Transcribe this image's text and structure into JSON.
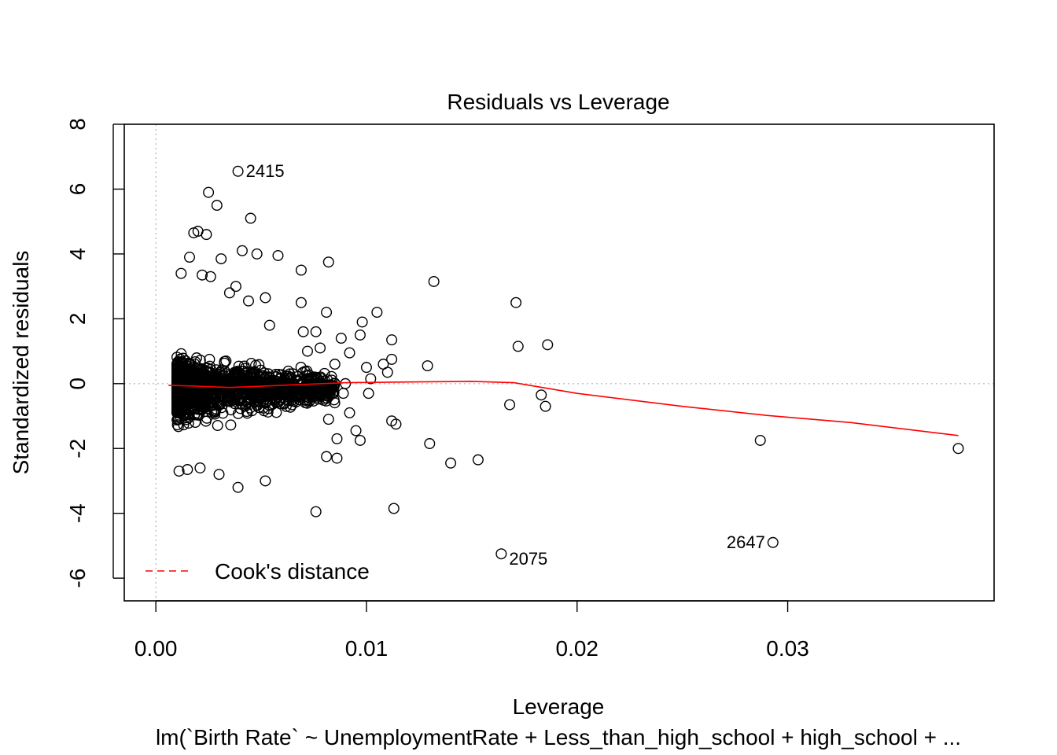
{
  "chart_data": {
    "type": "scatter",
    "title": "Residuals vs Leverage",
    "xlabel": "Leverage",
    "ylabel": "Standardized residuals",
    "subtitle": "lm(`Birth Rate` ~ UnemploymentRate + Less_than_high_school + high_school +  ...",
    "xlim": [
      -0.0015,
      0.0398
    ],
    "ylim": [
      -6.7,
      8.0
    ],
    "x_ticks": [
      0.0,
      0.01,
      0.02,
      0.03
    ],
    "x_tick_labels": [
      "0.00",
      "0.01",
      "0.02",
      "0.03"
    ],
    "y_ticks": [
      -6,
      -4,
      -2,
      0,
      2,
      4,
      6,
      8
    ],
    "y_tick_labels": [
      "-6",
      "-4",
      "-2",
      "0",
      "2",
      "4",
      "6",
      "8"
    ],
    "reference_lines": {
      "horizontal_y": 0,
      "vertical_x": 0,
      "style": "dotted",
      "color": "#bebebe"
    },
    "points": [
      {
        "x": 0.0039,
        "y": 6.55,
        "label": "2415"
      },
      {
        "x": 0.0164,
        "y": -5.25,
        "label": "2075"
      },
      {
        "x": 0.0293,
        "y": -4.9,
        "label": "2647"
      },
      {
        "x": 0.0025,
        "y": 5.9
      },
      {
        "x": 0.0029,
        "y": 5.5
      },
      {
        "x": 0.0045,
        "y": 5.1
      },
      {
        "x": 0.0018,
        "y": 4.65
      },
      {
        "x": 0.002,
        "y": 4.7
      },
      {
        "x": 0.0024,
        "y": 4.6
      },
      {
        "x": 0.0041,
        "y": 4.1
      },
      {
        "x": 0.0048,
        "y": 4.0
      },
      {
        "x": 0.0058,
        "y": 3.95
      },
      {
        "x": 0.0082,
        "y": 3.75
      },
      {
        "x": 0.0069,
        "y": 3.5
      },
      {
        "x": 0.0132,
        "y": 3.15
      },
      {
        "x": 0.0171,
        "y": 2.5
      },
      {
        "x": 0.0069,
        "y": 2.5
      },
      {
        "x": 0.0081,
        "y": 2.2
      },
      {
        "x": 0.0105,
        "y": 2.2
      },
      {
        "x": 0.0098,
        "y": 1.9
      },
      {
        "x": 0.0054,
        "y": 1.8
      },
      {
        "x": 0.007,
        "y": 1.6
      },
      {
        "x": 0.0076,
        "y": 1.6
      },
      {
        "x": 0.0097,
        "y": 1.5
      },
      {
        "x": 0.0088,
        "y": 1.4
      },
      {
        "x": 0.0112,
        "y": 1.35
      },
      {
        "x": 0.0172,
        "y": 1.15
      },
      {
        "x": 0.0186,
        "y": 1.2
      },
      {
        "x": 0.0078,
        "y": 1.1
      },
      {
        "x": 0.0072,
        "y": 1.0
      },
      {
        "x": 0.0092,
        "y": 0.95
      },
      {
        "x": 0.0112,
        "y": 0.75
      },
      {
        "x": 0.0108,
        "y": 0.6
      },
      {
        "x": 0.0129,
        "y": 0.55
      },
      {
        "x": 0.01,
        "y": 0.5
      },
      {
        "x": 0.011,
        "y": 0.35
      },
      {
        "x": 0.0102,
        "y": 0.15
      },
      {
        "x": 0.009,
        "y": 0.0
      },
      {
        "x": 0.0085,
        "y": 0.6
      },
      {
        "x": 0.0101,
        "y": -0.3
      },
      {
        "x": 0.0089,
        "y": -0.3
      },
      {
        "x": 0.0183,
        "y": -0.35
      },
      {
        "x": 0.0168,
        "y": -0.65
      },
      {
        "x": 0.0185,
        "y": -0.7
      },
      {
        "x": 0.0092,
        "y": -0.9
      },
      {
        "x": 0.0082,
        "y": -1.1
      },
      {
        "x": 0.0112,
        "y": -1.15
      },
      {
        "x": 0.0114,
        "y": -1.25
      },
      {
        "x": 0.0095,
        "y": -1.45
      },
      {
        "x": 0.0086,
        "y": -1.7
      },
      {
        "x": 0.0097,
        "y": -1.75
      },
      {
        "x": 0.013,
        "y": -1.85
      },
      {
        "x": 0.0287,
        "y": -1.75
      },
      {
        "x": 0.0381,
        "y": -2.0
      },
      {
        "x": 0.0081,
        "y": -2.25
      },
      {
        "x": 0.0086,
        "y": -2.3
      },
      {
        "x": 0.014,
        "y": -2.45
      },
      {
        "x": 0.0153,
        "y": -2.35
      },
      {
        "x": 0.0052,
        "y": -3.0
      },
      {
        "x": 0.0039,
        "y": -3.2
      },
      {
        "x": 0.0076,
        "y": -3.95
      },
      {
        "x": 0.0113,
        "y": -3.85
      },
      {
        "x": 0.0021,
        "y": -2.6
      },
      {
        "x": 0.003,
        "y": -2.8
      },
      {
        "x": 0.0011,
        "y": -2.7
      },
      {
        "x": 0.0015,
        "y": -2.65
      },
      {
        "x": 0.0026,
        "y": 3.3
      },
      {
        "x": 0.0031,
        "y": 3.85
      },
      {
        "x": 0.0038,
        "y": 3.0
      },
      {
        "x": 0.0016,
        "y": 3.9
      },
      {
        "x": 0.0012,
        "y": 3.4
      },
      {
        "x": 0.0022,
        "y": 3.35
      },
      {
        "x": 0.0044,
        "y": 2.55
      },
      {
        "x": 0.0052,
        "y": 2.65
      },
      {
        "x": 0.0035,
        "y": 2.8
      }
    ],
    "dense_cluster": {
      "count": 1400,
      "x_range": [
        0.0006,
        0.0085
      ],
      "y_range": [
        -2.6,
        2.6
      ]
    },
    "smooth_line": {
      "color": "#ff0000",
      "points": [
        [
          0.0006,
          -0.05
        ],
        [
          0.002,
          -0.08
        ],
        [
          0.0035,
          -0.12
        ],
        [
          0.006,
          -0.05
        ],
        [
          0.009,
          0.03
        ],
        [
          0.012,
          0.05
        ],
        [
          0.015,
          0.07
        ],
        [
          0.017,
          0.03
        ],
        [
          0.02,
          -0.3
        ],
        [
          0.025,
          -0.7
        ],
        [
          0.029,
          -0.98
        ],
        [
          0.033,
          -1.2
        ],
        [
          0.0381,
          -1.6
        ]
      ]
    },
    "legend": {
      "entries": [
        {
          "label": "Cook's distance",
          "color": "#ff0000",
          "style": "dashed"
        }
      ],
      "placement": "bottom-left"
    }
  }
}
